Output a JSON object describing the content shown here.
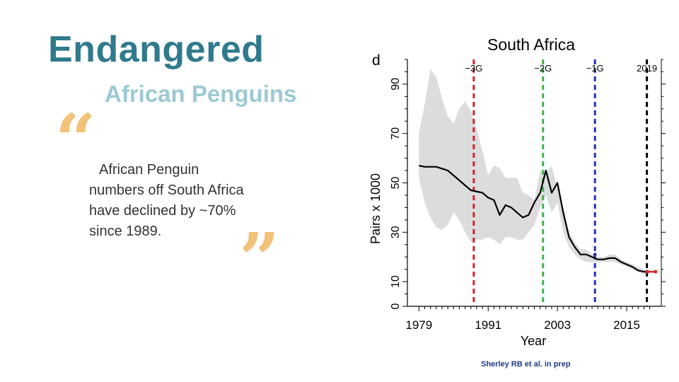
{
  "slide": {
    "title": "Endangered",
    "subtitle": "African Penguins",
    "quote": "African Penguin numbers off South Africa have declined by ~70% since 1989.",
    "quote_open": "“",
    "quote_close": "”",
    "citation": "Sherley RB et al. in prep",
    "colors": {
      "title": "#2f7a8c",
      "subtitle": "#9cc9d3",
      "quote_marks": "#f2c27a",
      "citation": "#1f3c88"
    }
  },
  "chart_data": {
    "type": "line",
    "title": "South Africa",
    "panel_label": "d",
    "xlabel": "Year",
    "ylabel": "Pairs x 1000",
    "xlim": [
      1977,
      2021
    ],
    "ylim": [
      0,
      100
    ],
    "xticks": [
      1979,
      1991,
      2003,
      2015
    ],
    "yticks": [
      0,
      10,
      30,
      50,
      70,
      90
    ],
    "grid": false,
    "series": [
      {
        "role": "mean",
        "color": "#000000",
        "x": [
          1979,
          1980,
          1982,
          1984,
          1986,
          1988,
          1990,
          1991,
          1992,
          1993,
          1994,
          1995,
          1996,
          1997,
          1998,
          1999,
          2000,
          2001,
          2002,
          2003,
          2004,
          2005,
          2006,
          2007,
          2008,
          2009,
          2010,
          2011,
          2012,
          2013,
          2014,
          2015,
          2016,
          2017,
          2018,
          2019
        ],
        "y": [
          57,
          56.5,
          56.5,
          55,
          51,
          47,
          46,
          44,
          43,
          37,
          41,
          40,
          38,
          36,
          37,
          42,
          46,
          55,
          46,
          50,
          38,
          28,
          24,
          21,
          21,
          20,
          19,
          19,
          19.5,
          19.5,
          18,
          17,
          16,
          14.5,
          14,
          14
        ]
      }
    ],
    "band": {
      "color": "#dcdcdc",
      "x": [
        1979,
        1980,
        1981,
        1982,
        1983,
        1984,
        1985,
        1986,
        1987,
        1988,
        1989,
        1990,
        1991,
        1992,
        1993,
        1994,
        1995,
        1996,
        1997,
        1998,
        1999,
        2000,
        2001,
        2002,
        2003,
        2004,
        2005,
        2006,
        2007,
        2008,
        2009,
        2010,
        2011,
        2012,
        2013,
        2014,
        2015,
        2016,
        2017,
        2018,
        2019
      ],
      "upper": [
        70,
        82,
        96,
        93,
        84,
        77,
        74,
        80,
        83,
        79,
        72,
        63,
        53,
        57,
        56,
        52,
        52,
        52,
        46,
        45,
        43,
        55,
        54,
        57,
        48,
        40,
        30,
        26,
        23,
        23,
        21,
        20,
        20,
        21,
        21,
        19,
        18,
        17,
        16,
        15,
        15
      ],
      "lower": [
        52,
        42,
        36,
        32,
        31,
        33,
        38,
        35,
        30,
        26,
        27,
        27,
        28,
        27,
        25,
        28,
        28,
        27,
        27,
        30,
        33,
        40,
        45,
        38,
        42,
        30,
        24,
        21,
        19,
        18,
        18,
        18,
        18,
        18,
        18,
        17,
        16,
        15,
        14,
        13,
        13
      ]
    },
    "reference_lines": [
      {
        "label": "−3G",
        "x": 1988.5,
        "color": "#d0262b"
      },
      {
        "label": "−2G",
        "x": 2000.5,
        "color": "#3db549"
      },
      {
        "label": "−1G",
        "x": 2009.5,
        "color": "#2634a8"
      },
      {
        "label": "2019",
        "x": 2018.5,
        "color": "#000000"
      }
    ],
    "highlight_points": [
      {
        "x": 2009.5,
        "y": 21,
        "color": "#2634a8"
      },
      {
        "x": 2018.5,
        "y": 14,
        "color": "#d0262b"
      },
      {
        "x": 2020,
        "y": 14,
        "color": "#d0262b"
      }
    ]
  }
}
